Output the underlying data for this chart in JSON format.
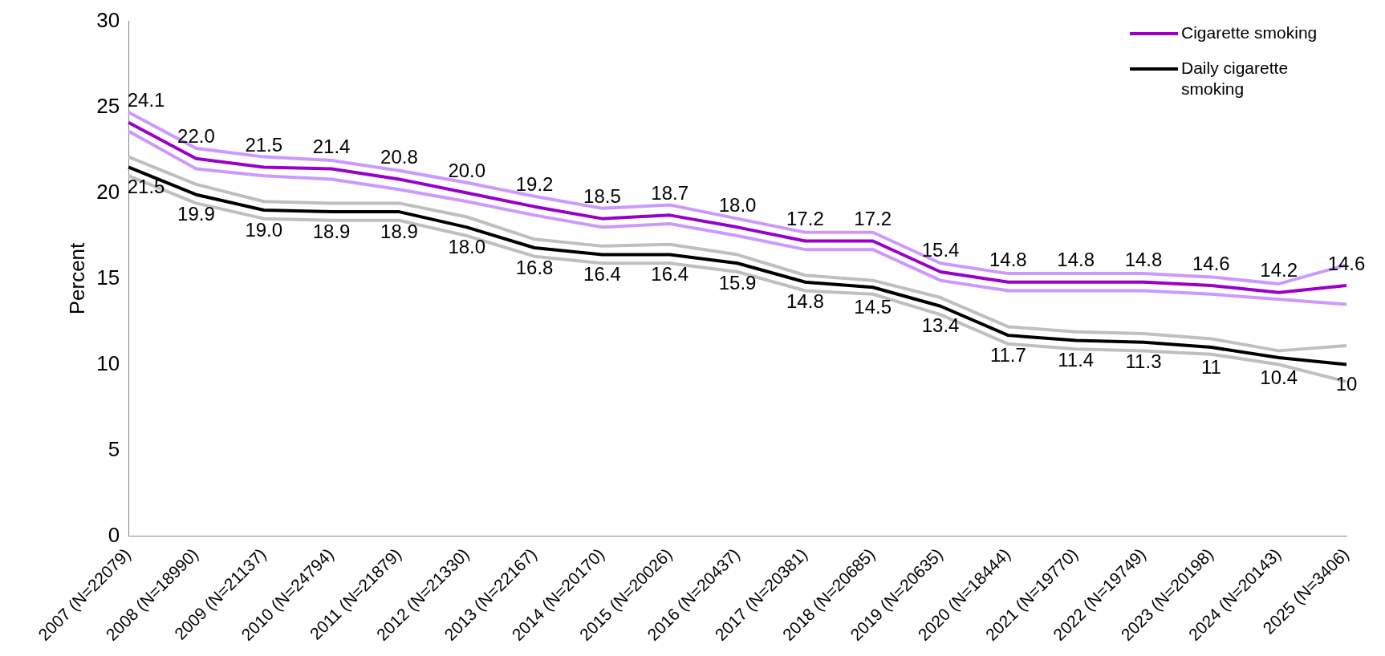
{
  "chart_data": {
    "type": "line",
    "ylabel": "Percent",
    "categories": [
      "2007 (N=22079)",
      "2008 (N=18990)",
      "2009 (N=21137)",
      "2010 (N=24794)",
      "2011 (N=21879)",
      "2012 (N=21330)",
      "2013 (N=22167)",
      "2014 (N=20170)",
      "2015 (N=20026)",
      "2016 (N=20437)",
      "2017 (N=20381)",
      "2018 (N=20685)",
      "2019 (N=20635)",
      "2020 (N=18444)",
      "2021 (N=19770)",
      "2022 (N=19749)",
      "2023 (N=20198)",
      "2024 (N=20143)",
      "2025 (N=3406)"
    ],
    "series": [
      {
        "color": "#cc99ff",
        "values": [
          24.7,
          22.6,
          22.1,
          21.9,
          21.3,
          20.6,
          19.8,
          19.1,
          19.3,
          18.5,
          17.7,
          17.7,
          15.9,
          15.3,
          15.3,
          15.3,
          15.1,
          14.7,
          15.8
        ]
      },
      {
        "color": "#cc99ff",
        "values": [
          23.6,
          21.4,
          21.0,
          20.8,
          20.2,
          19.5,
          18.7,
          18.0,
          18.2,
          17.5,
          16.7,
          16.7,
          14.9,
          14.3,
          14.3,
          14.3,
          14.1,
          13.8,
          13.5
        ]
      },
      {
        "color": "#bfbfbf",
        "values": [
          22.1,
          20.5,
          19.5,
          19.4,
          19.4,
          18.6,
          17.3,
          16.9,
          17.0,
          16.4,
          15.2,
          14.9,
          13.9,
          12.2,
          11.9,
          11.8,
          11.5,
          10.8,
          11.1
        ]
      },
      {
        "color": "#bfbfbf",
        "values": [
          21.0,
          19.4,
          18.5,
          18.4,
          18.4,
          17.5,
          16.3,
          15.9,
          15.9,
          15.4,
          14.3,
          14.1,
          12.9,
          11.2,
          10.9,
          10.8,
          10.6,
          10.0,
          9.0
        ]
      },
      {
        "name": "Cigarette smoking",
        "color": "#9900cc",
        "values": [
          24.1,
          22.0,
          21.5,
          21.4,
          20.8,
          20.0,
          19.2,
          18.5,
          18.7,
          18.0,
          17.2,
          17.2,
          15.4,
          14.8,
          14.8,
          14.8,
          14.6,
          14.2,
          14.6
        ],
        "value_labels": [
          "24.1",
          "22.0",
          "21.5",
          "21.4",
          "20.8",
          "20.0",
          "19.2",
          "18.5",
          "18.7",
          "18.0",
          "17.2",
          "17.2",
          "15.4",
          "14.8",
          "14.8",
          "14.8",
          "14.6",
          "14.2",
          "14.6"
        ]
      },
      {
        "name": "Daily cigarette smoking",
        "color": "#000000",
        "values": [
          21.5,
          19.9,
          19.0,
          18.9,
          18.9,
          18.0,
          16.8,
          16.4,
          16.4,
          15.9,
          14.8,
          14.5,
          13.4,
          11.7,
          11.4,
          11.3,
          11,
          10.4,
          10
        ],
        "value_labels": [
          "21.5",
          "19.9",
          "19.0",
          "18.9",
          "18.9",
          "18.0",
          "16.8",
          "16.4",
          "16.4",
          "15.9",
          "14.8",
          "14.5",
          "13.4",
          "11.7",
          "11.4",
          "11.3",
          "11",
          "10.4",
          "10"
        ]
      }
    ],
    "ylim": [
      0,
      30
    ],
    "yticks": [
      0,
      5,
      10,
      15,
      20,
      25,
      30
    ],
    "grid": false,
    "legend": "top right",
    "marker": "none",
    "line_style": "solid"
  }
}
